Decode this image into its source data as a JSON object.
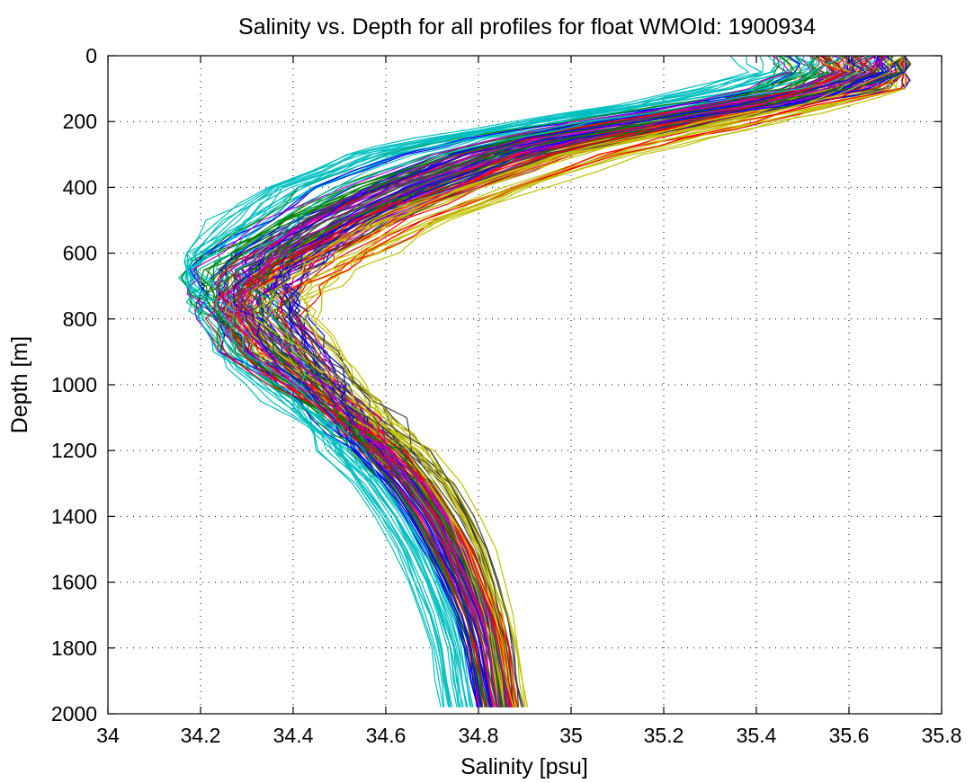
{
  "chart_data": {
    "type": "line",
    "title": "Salinity vs. Depth for all profiles for float WMOId: 1900934",
    "xlabel": "Salinity [psu]",
    "ylabel": "Depth [m]",
    "xlim": [
      34,
      35.8
    ],
    "ylim": [
      0,
      2000
    ],
    "y_reversed": true,
    "grid": true,
    "x_ticks": [
      "34",
      "34.2",
      "34.4",
      "34.6",
      "34.8",
      "35",
      "35.2",
      "35.4",
      "35.6",
      "35.8"
    ],
    "y_ticks": [
      "0",
      "200",
      "400",
      "600",
      "800",
      "1000",
      "1200",
      "1400",
      "1600",
      "1800",
      "2000"
    ],
    "colors": [
      "#0000ff",
      "#008000",
      "#ff0000",
      "#00bfbf",
      "#bf00bf",
      "#bfbf00",
      "#3f3f3f"
    ],
    "profile_count": 140,
    "depths": [
      0,
      50,
      100,
      150,
      200,
      250,
      300,
      400,
      500,
      600,
      650,
      700,
      750,
      800,
      900,
      1000,
      1100,
      1200,
      1300,
      1400,
      1500,
      1600,
      1700,
      1800,
      1900,
      1980
    ],
    "series": [
      {
        "values": [
          35.7,
          35.69,
          35.6,
          35.4,
          35.2,
          35.0,
          34.85,
          34.68,
          34.52,
          34.4,
          34.35,
          34.32,
          34.3,
          34.31,
          34.36,
          34.44,
          34.52,
          34.58,
          34.64,
          34.69,
          34.73,
          34.76,
          34.79,
          34.81,
          34.82,
          34.83
        ]
      },
      {
        "values": [
          35.62,
          35.6,
          35.5,
          35.3,
          35.05,
          34.82,
          34.7,
          34.5,
          34.38,
          34.27,
          34.24,
          34.25,
          34.28,
          34.3,
          34.34,
          34.41,
          34.49,
          34.56,
          34.62,
          34.67,
          34.71,
          34.75,
          34.78,
          34.8,
          34.82,
          34.83
        ]
      },
      {
        "values": [
          35.72,
          35.71,
          35.66,
          35.55,
          35.4,
          35.25,
          35.1,
          34.9,
          34.72,
          34.58,
          34.5,
          34.44,
          34.4,
          34.38,
          34.41,
          34.47,
          34.55,
          34.62,
          34.68,
          34.73,
          34.77,
          34.8,
          34.83,
          34.85,
          34.86,
          34.87
        ]
      },
      {
        "values": [
          35.55,
          35.52,
          35.4,
          35.2,
          34.98,
          34.78,
          34.62,
          34.44,
          34.33,
          34.24,
          34.2,
          34.22,
          34.26,
          34.28,
          34.32,
          34.38,
          34.44,
          34.5,
          34.56,
          34.61,
          34.65,
          34.68,
          34.71,
          34.73,
          34.74,
          34.75
        ]
      },
      {
        "values": [
          35.68,
          35.66,
          35.62,
          35.5,
          35.35,
          35.18,
          35.02,
          34.8,
          34.6,
          34.46,
          34.4,
          34.36,
          34.33,
          34.33,
          34.38,
          34.46,
          34.54,
          34.61,
          34.67,
          34.72,
          34.76,
          34.79,
          34.81,
          34.83,
          34.84,
          34.85
        ]
      },
      {
        "values": [
          35.65,
          35.64,
          35.58,
          35.45,
          35.3,
          35.12,
          34.96,
          34.75,
          34.57,
          34.43,
          34.37,
          34.33,
          34.31,
          34.32,
          34.4,
          34.5,
          34.6,
          34.68,
          34.74,
          34.78,
          34.81,
          34.83,
          34.85,
          34.86,
          34.87,
          34.88
        ]
      },
      {
        "values": [
          35.6,
          35.58,
          35.48,
          35.28,
          35.08,
          34.88,
          34.74,
          34.56,
          34.42,
          34.32,
          34.28,
          34.26,
          34.27,
          34.29,
          34.35,
          34.43,
          34.51,
          34.58,
          34.64,
          34.69,
          34.73,
          34.76,
          34.79,
          34.81,
          34.82,
          34.83
        ]
      }
    ]
  }
}
